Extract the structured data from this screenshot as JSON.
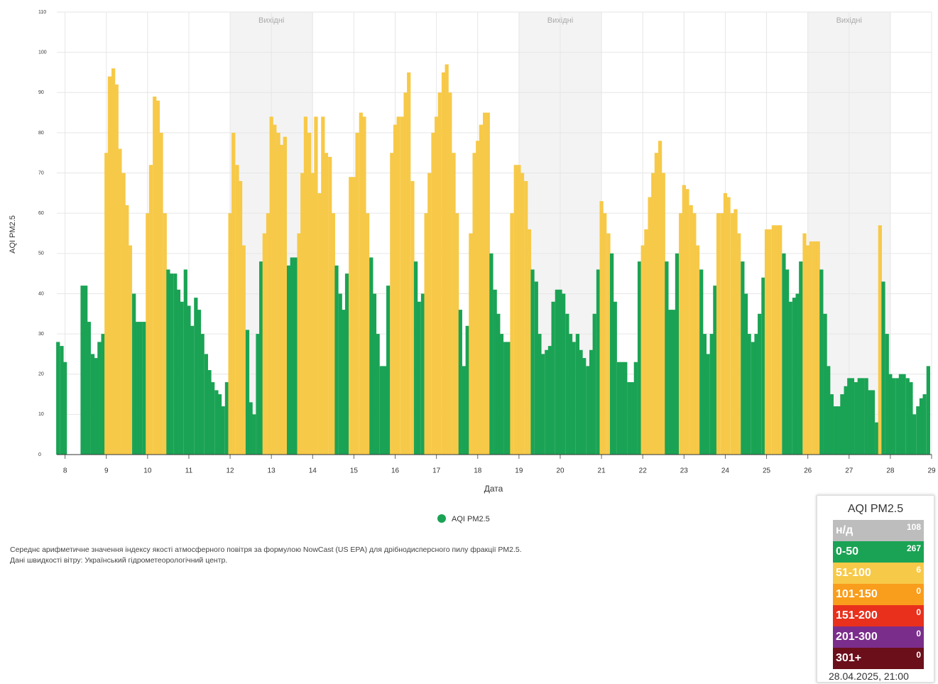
{
  "chart_data": {
    "type": "bar",
    "y_label": "AQI PM2.5",
    "x_label": "Дата",
    "xlim": [
      7.8,
      29
    ],
    "ylim": [
      0,
      110
    ],
    "xticks": [
      8,
      9,
      10,
      11,
      12,
      13,
      14,
      15,
      16,
      17,
      18,
      19,
      20,
      21,
      22,
      23,
      24,
      25,
      26,
      27,
      28,
      29
    ],
    "yticks": [
      0,
      10,
      20,
      30,
      40,
      50,
      60,
      70,
      80,
      90,
      100,
      110
    ],
    "grid": true,
    "weekends": [
      {
        "from": 12,
        "to": 14,
        "label": "Вихідні"
      },
      {
        "from": 19,
        "to": 21,
        "label": "Вихідні"
      },
      {
        "from": 26,
        "to": 28,
        "label": "Вихідні"
      }
    ],
    "x": [
      7.83,
      7.92,
      8,
      8.08,
      8.17,
      8.25,
      8.33,
      8.42,
      8.5,
      8.58,
      8.67,
      8.75,
      8.83,
      8.92,
      9,
      9.08,
      9.17,
      9.25,
      9.33,
      9.42,
      9.5,
      9.58,
      9.67,
      9.75,
      9.83,
      9.92,
      10,
      10.08,
      10.17,
      10.25,
      10.33,
      10.42,
      10.5,
      10.58,
      10.67,
      10.75,
      10.83,
      10.92,
      11,
      11.08,
      11.17,
      11.25,
      11.33,
      11.42,
      11.5,
      11.58,
      11.67,
      11.75,
      11.83,
      11.92,
      12,
      12.08,
      12.17,
      12.25,
      12.33,
      12.42,
      12.5,
      12.58,
      12.67,
      12.75,
      12.83,
      12.92,
      13,
      13.08,
      13.17,
      13.25,
      13.33,
      13.42,
      13.5,
      13.58,
      13.67,
      13.75,
      13.83,
      13.92,
      14,
      14.08,
      14.17,
      14.25,
      14.33,
      14.42,
      14.5,
      14.58,
      14.67,
      14.75,
      14.83,
      14.92,
      15,
      15.08,
      15.17,
      15.25,
      15.33,
      15.42,
      15.5,
      15.58,
      15.67,
      15.75,
      15.83,
      15.92,
      16,
      16.08,
      16.17,
      16.25,
      16.33,
      16.42,
      16.5,
      16.58,
      16.67,
      16.75,
      16.83,
      16.92,
      17,
      17.08,
      17.17,
      17.25,
      17.33,
      17.42,
      17.5,
      17.58,
      17.67,
      17.75,
      17.83,
      17.92,
      18,
      18.08,
      18.17,
      18.25,
      18.33,
      18.42,
      18.5,
      18.58,
      18.67,
      18.75,
      18.83,
      18.92,
      19,
      19.08,
      19.17,
      19.25,
      19.33,
      19.42,
      19.5,
      19.58,
      19.67,
      19.75,
      19.83,
      19.92,
      20,
      20.08,
      20.17,
      20.25,
      20.33,
      20.42,
      20.5,
      20.58,
      20.67,
      20.75,
      20.83,
      20.92,
      21,
      21.08,
      21.17,
      21.25,
      21.33,
      21.42,
      21.5,
      21.58,
      21.67,
      21.75,
      21.83,
      21.92,
      22,
      22.08,
      22.17,
      22.25,
      22.33,
      22.42,
      22.5,
      22.58,
      22.67,
      22.75,
      22.83,
      22.92,
      23,
      23.08,
      23.17,
      23.25,
      23.33,
      23.42,
      23.5,
      23.58,
      23.67,
      23.75,
      23.83,
      23.92,
      24,
      24.08,
      24.17,
      24.25,
      24.33,
      24.42,
      24.5,
      24.58,
      24.67,
      24.75,
      24.83,
      24.92,
      25,
      25.08,
      25.17,
      25.25,
      25.33,
      25.42,
      25.5,
      25.58,
      25.67,
      25.75,
      25.83,
      25.92,
      26,
      26.08,
      26.17,
      26.25,
      26.33,
      26.42,
      26.5,
      26.58,
      26.67,
      26.75,
      26.83,
      26.92,
      27,
      27.08,
      27.17,
      27.25,
      27.33,
      27.42,
      27.5,
      27.58,
      27.67,
      27.75,
      27.83,
      27.92,
      28,
      28.08,
      28.17,
      28.25,
      28.33,
      28.42,
      28.5,
      28.58,
      28.67,
      28.75,
      28.83,
      28.92
    ],
    "series": [
      {
        "name": "AQI PM2.5",
        "color": "#1aa354",
        "values": [
          28,
          27,
          23,
          null,
          null,
          null,
          null,
          42,
          42,
          33,
          25,
          24,
          28,
          30,
          75,
          94,
          96,
          92,
          76,
          70,
          62,
          52,
          40,
          33,
          33,
          33,
          60,
          72,
          89,
          88,
          80,
          60,
          46,
          45,
          45,
          41,
          38,
          46,
          37,
          32,
          39,
          36,
          30,
          25,
          21,
          18,
          16,
          15,
          12,
          18,
          60,
          80,
          72,
          68,
          52,
          31,
          13,
          10,
          30,
          48,
          55,
          60,
          84,
          82,
          80,
          77,
          79,
          47,
          49,
          49,
          55,
          70,
          84,
          80,
          70,
          84,
          65,
          84,
          75,
          74,
          60,
          47,
          40,
          36,
          45,
          69,
          69,
          80,
          85,
          84,
          60,
          49,
          40,
          30,
          22,
          22,
          42,
          75,
          82,
          84,
          84,
          90,
          95,
          68,
          48,
          38,
          40,
          60,
          70,
          80,
          84,
          90,
          95,
          97,
          90,
          75,
          60,
          36,
          22,
          32,
          55,
          75,
          78,
          82,
          85,
          85,
          50,
          41,
          35,
          30,
          28,
          28,
          60,
          72,
          72,
          70,
          68,
          56,
          46,
          43,
          30,
          25,
          26,
          27,
          38,
          41,
          41,
          40,
          35,
          30,
          28,
          30,
          26,
          24,
          22,
          26,
          35,
          46,
          63,
          60,
          55,
          50,
          38,
          23,
          23,
          23,
          18,
          18,
          23,
          48,
          52,
          56,
          64,
          70,
          75,
          78,
          70,
          48,
          36,
          36,
          50,
          60,
          67,
          66,
          62,
          60,
          52,
          46,
          30,
          25,
          30,
          42,
          60,
          60,
          65,
          64,
          60,
          61,
          55,
          48,
          40,
          30,
          28,
          30,
          35,
          44,
          56,
          56,
          57,
          57,
          57,
          50,
          46,
          38,
          39,
          40,
          48,
          55,
          52,
          53,
          53,
          53,
          46,
          35,
          22,
          15,
          12,
          12,
          15,
          17,
          19,
          19,
          18,
          19,
          19,
          19,
          16,
          16,
          8,
          57,
          43,
          30,
          20,
          19,
          19,
          20,
          20,
          19,
          18,
          10,
          12,
          14,
          15,
          22
        ]
      }
    ],
    "bands": [
      {
        "label": "н/д",
        "count": 108,
        "color": "#bdbdbd"
      },
      {
        "label": "0-50",
        "count": 267,
        "color": "#1aa354",
        "max": 50
      },
      {
        "label": "51-100",
        "count": 6,
        "color": "#f7c948",
        "max": 100
      },
      {
        "label": "101-150",
        "count": 0,
        "color": "#f99d1c",
        "max": 150
      },
      {
        "label": "151-200",
        "count": 0,
        "color": "#e8301c",
        "max": 200
      },
      {
        "label": "201-300",
        "count": 0,
        "color": "#7b2d8b",
        "max": 300
      },
      {
        "label": "301+",
        "count": 0,
        "color": "#6b0f1a"
      }
    ],
    "panel_title": "AQI PM2.5",
    "timestamp": "28.04.2025, 21:00",
    "notes": [
      "Середнє арифметичне значення індексу якості атмосферного повітря за формулою NowCast (US EPA) для дрібнодисперсного пилу фракції PM2.5.",
      "Дані швидкості вітру: Український гідрометеорологічний центр."
    ]
  }
}
